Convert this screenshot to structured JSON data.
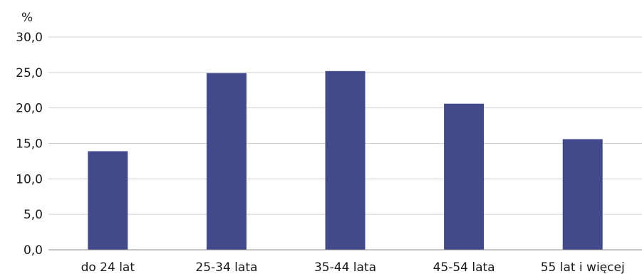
{
  "chart_data": {
    "type": "bar",
    "ylabel": "%",
    "categories": [
      "do 24 lat",
      "25-34 lata",
      "35-44 lata",
      "45-54 lata",
      "55 lat i więcej"
    ],
    "values": [
      13.9,
      24.9,
      25.2,
      20.6,
      15.6
    ],
    "ylim": [
      0,
      30
    ],
    "yticks": [
      "0,0",
      "5,0",
      "10,0",
      "15,0",
      "20,0",
      "25,0",
      "30,0"
    ],
    "grid": true,
    "legend": "none",
    "colors": {
      "bar": "#434a8c"
    }
  }
}
